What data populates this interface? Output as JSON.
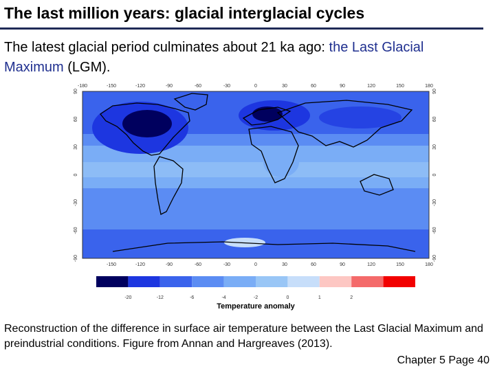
{
  "slide": {
    "title": "The last million years: glacial interglacial cycles",
    "intro_part1": "The latest glacial period culminates about 21 ka ago: ",
    "intro_highlight": "the Last Glacial Maximum",
    "intro_part2": " (LGM).",
    "caption": "Reconstruction of the difference in surface air temperature between the Last Glacial Maximum and preindustrial conditions. Figure from Annan and Hargreaves (2013).",
    "footer": "Chapter 5 Page 40"
  },
  "map": {
    "lon_ticks": [
      "-150",
      "-120",
      "-90",
      "-60",
      "-30",
      "0",
      "30",
      "60",
      "90",
      "120",
      "150",
      "180"
    ],
    "lon_ticks_top": [
      "-180",
      "-150",
      "-120",
      "-90",
      "-60",
      "-30",
      "0",
      "30",
      "60",
      "90",
      "120",
      "150",
      "180"
    ],
    "lat_ticks": [
      "90",
      "60",
      "30",
      "0",
      "-30",
      "-60",
      "-90"
    ],
    "lat_values": [
      90,
      60,
      30,
      0,
      -30,
      -60,
      -90
    ]
  },
  "legend": {
    "title": "Temperature anomaly",
    "colors": [
      "#00005e",
      "#1d36e0",
      "#3a63ec",
      "#5b8cf3",
      "#7aadf6",
      "#99c6f6",
      "#c7defa",
      "#fdc7c3",
      "#f46a6a",
      "#f20000"
    ],
    "tick_labels": [
      "-20",
      "-12",
      "-6",
      "-4",
      "-2",
      "0",
      "1",
      "2"
    ]
  },
  "palette": {
    "title_rule": "#1f2a57",
    "highlight": "#1f2f8f"
  }
}
